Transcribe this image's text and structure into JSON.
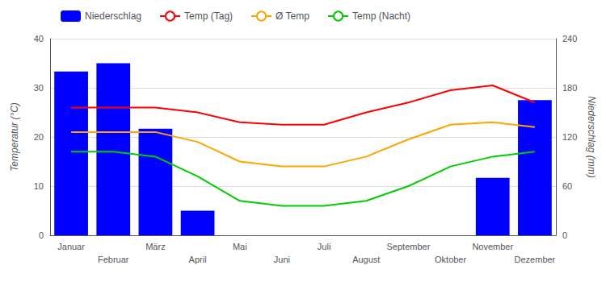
{
  "chart_data": {
    "type": "combo",
    "categories": [
      "Januar",
      "Februar",
      "März",
      "April",
      "Mai",
      "Juni",
      "Juli",
      "August",
      "September",
      "Oktober",
      "November",
      "Dezember"
    ],
    "series": [
      {
        "name": "Niederschlag",
        "type": "bar",
        "axis": "y2",
        "color": "#0000ff",
        "values": [
          200,
          210,
          130,
          30,
          0,
          0,
          0,
          0,
          0,
          0,
          70,
          165
        ]
      },
      {
        "name": "Temp (Tag)",
        "type": "line",
        "color": "#ff0000",
        "values": [
          26,
          26,
          26,
          25,
          23,
          22.5,
          22.5,
          25,
          27,
          29.5,
          30.5,
          27
        ]
      },
      {
        "name": "Ø Temp",
        "type": "line",
        "color": "#ffa500",
        "values": [
          21,
          21,
          21,
          19,
          15,
          14,
          14,
          16,
          19.5,
          22.5,
          23,
          22
        ]
      },
      {
        "name": "Temp (Nacht)",
        "type": "line",
        "color": "#00cc00",
        "values": [
          17,
          17,
          16,
          12,
          7,
          6,
          6,
          7,
          10,
          14,
          16,
          17
        ]
      }
    ],
    "ylabel": "Temperatur (°C)",
    "y2label": "Niederschlag (mm)",
    "ylim": [
      0,
      40
    ],
    "yticks": [
      0,
      10,
      20,
      30,
      40
    ],
    "y2lim": [
      0,
      240
    ],
    "y2ticks": [
      0,
      60,
      120,
      180,
      240
    ],
    "grid": true,
    "legend": "upper left"
  }
}
